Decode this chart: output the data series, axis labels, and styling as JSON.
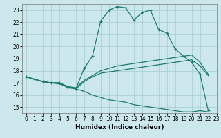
{
  "xlabel": "Humidex (Indice chaleur)",
  "bg_color": "#cce8ec",
  "grid_color": "#aacfd5",
  "line_color": "#1a7a6e",
  "xlim": [
    -0.5,
    23
  ],
  "ylim": [
    14.5,
    23.5
  ],
  "xticks": [
    0,
    1,
    2,
    3,
    4,
    5,
    6,
    7,
    8,
    9,
    10,
    11,
    12,
    13,
    14,
    15,
    16,
    17,
    18,
    19,
    20,
    21,
    22,
    23
  ],
  "yticks": [
    15,
    16,
    17,
    18,
    19,
    20,
    21,
    22,
    23
  ],
  "series": [
    {
      "x": [
        0,
        1,
        2,
        3,
        4,
        5,
        6,
        7,
        8,
        9,
        10,
        11,
        12,
        13,
        14,
        15,
        16,
        17,
        18,
        19,
        20,
        21,
        22
      ],
      "y": [
        17.5,
        17.3,
        17.1,
        17.0,
        17.0,
        16.6,
        16.5,
        18.2,
        19.2,
        22.1,
        23.0,
        23.3,
        23.2,
        22.2,
        22.8,
        23.0,
        21.4,
        21.1,
        19.8,
        19.2,
        18.7,
        17.7,
        14.7
      ],
      "marker": true
    },
    {
      "x": [
        0,
        1,
        2,
        3,
        4,
        5,
        6,
        7,
        8,
        9,
        10,
        11,
        12,
        13,
        14,
        15,
        16,
        17,
        18,
        19,
        20,
        21,
        22
      ],
      "y": [
        17.5,
        17.3,
        17.1,
        17.0,
        17.0,
        16.7,
        16.6,
        17.2,
        17.6,
        18.0,
        18.2,
        18.4,
        18.5,
        18.6,
        18.7,
        18.8,
        18.9,
        19.0,
        19.1,
        19.2,
        19.3,
        18.7,
        17.7
      ],
      "marker": false
    },
    {
      "x": [
        0,
        1,
        2,
        3,
        4,
        5,
        6,
        7,
        8,
        9,
        10,
        11,
        12,
        13,
        14,
        15,
        16,
        17,
        18,
        19,
        20,
        21,
        22
      ],
      "y": [
        17.5,
        17.3,
        17.1,
        17.0,
        17.0,
        16.7,
        16.5,
        17.1,
        17.5,
        17.8,
        17.9,
        18.0,
        18.1,
        18.2,
        18.3,
        18.4,
        18.5,
        18.6,
        18.7,
        18.8,
        18.9,
        18.4,
        17.6
      ],
      "marker": false
    },
    {
      "x": [
        0,
        1,
        2,
        3,
        4,
        5,
        6,
        7,
        8,
        9,
        10,
        11,
        12,
        13,
        14,
        15,
        16,
        17,
        18,
        19,
        20,
        21,
        22
      ],
      "y": [
        17.5,
        17.3,
        17.1,
        17.0,
        16.9,
        16.7,
        16.5,
        16.3,
        16.0,
        15.8,
        15.6,
        15.5,
        15.4,
        15.2,
        15.1,
        15.0,
        14.9,
        14.8,
        14.7,
        14.6,
        14.6,
        14.7,
        14.6
      ],
      "marker": false
    }
  ]
}
